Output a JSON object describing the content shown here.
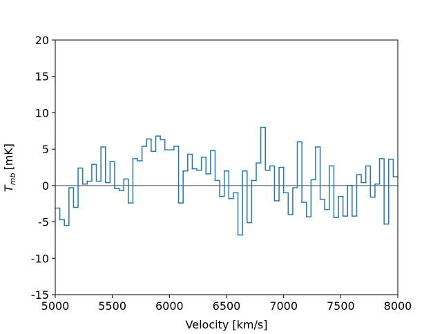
{
  "chart_data": {
    "type": "step",
    "x_label": "Velocity [km/s]",
    "y_label": {
      "symbol": "T",
      "subscript": "mb",
      "unit": "[mK]"
    },
    "x": [
      5020,
      5060,
      5100,
      5140,
      5180,
      5220,
      5260,
      5300,
      5340,
      5380,
      5420,
      5460,
      5500,
      5540,
      5580,
      5620,
      5660,
      5700,
      5740,
      5780,
      5820,
      5860,
      5900,
      5940,
      5980,
      6020,
      6060,
      6100,
      6140,
      6180,
      6220,
      6260,
      6300,
      6340,
      6380,
      6420,
      6460,
      6500,
      6540,
      6580,
      6620,
      6660,
      6700,
      6740,
      6780,
      6820,
      6860,
      6900,
      6940,
      6980,
      7020,
      7060,
      7100,
      7140,
      7180,
      7220,
      7260,
      7300,
      7340,
      7380,
      7420,
      7460,
      7500,
      7540,
      7580,
      7620,
      7660,
      7700,
      7740,
      7780,
      7820,
      7860,
      7900,
      7940,
      7980
    ],
    "series": [
      {
        "color": "#1f77b4",
        "values": [
          -3.1,
          -4.7,
          -5.5,
          -0.3,
          -3.0,
          2.4,
          0.2,
          0.6,
          2.9,
          0.6,
          5.3,
          0.4,
          3.3,
          -0.4,
          -0.7,
          0.9,
          -2.4,
          3.7,
          3.4,
          5.4,
          6.4,
          4.7,
          6.8,
          6.3,
          4.9,
          4.9,
          5.4,
          -2.4,
          2.0,
          4.3,
          2.3,
          2.1,
          3.9,
          1.6,
          4.8,
          0.7,
          -1.5,
          2.0,
          -1.8,
          -1.0,
          -6.8,
          2.0,
          -5.1,
          0.7,
          3.1,
          8.0,
          2.1,
          2.7,
          -2.1,
          2.5,
          -1.0,
          -4.0,
          -0.3,
          6.0,
          -2.3,
          -4.3,
          0.8,
          5.3,
          -1.9,
          -3.3,
          2.7,
          -4.4,
          -1.5,
          -4.2,
          0.0,
          -4.2,
          1.5,
          0.4,
          2.7,
          -1.6,
          0.2,
          3.7,
          -5.3,
          3.6,
          1.2
        ]
      }
    ],
    "bin_width": 40,
    "baseline": {
      "value": 0,
      "color": "#808080"
    },
    "xlim": [
      5000,
      8000
    ],
    "xticks": [
      5000,
      5500,
      6000,
      6500,
      7000,
      7500,
      8000
    ],
    "ylim": [
      -15,
      20
    ],
    "yticks": [
      -15,
      -10,
      -5,
      0,
      5,
      10,
      15,
      20
    ]
  }
}
